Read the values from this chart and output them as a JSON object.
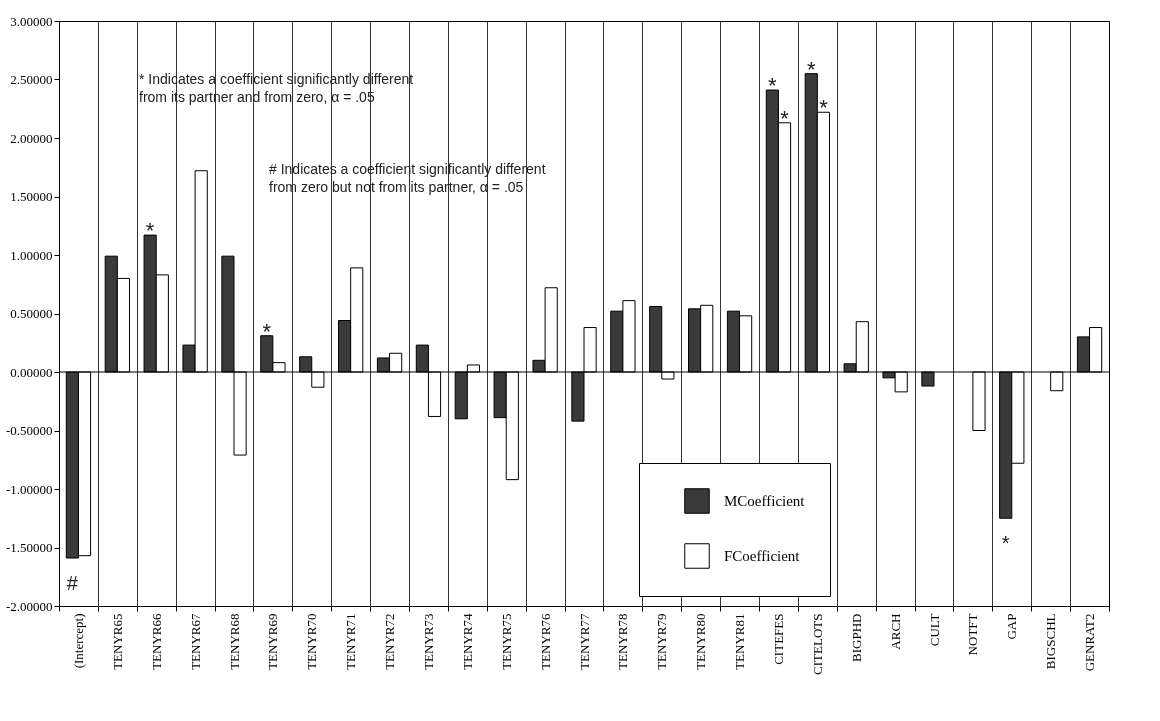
{
  "chart_data": {
    "type": "bar",
    "categories": [
      "(Intercept)",
      "TENYR65",
      "TENYR66",
      "TENYR67",
      "TENYR68",
      "TENYR69",
      "TENYR70",
      "TENYR71",
      "TENYR72",
      "TENYR73",
      "TENYR74",
      "TENYR75",
      "TENYR76",
      "TENYR77",
      "TENYR78",
      "TENYR79",
      "TENYR80",
      "TENYR81",
      "CITEFES",
      "CITELOTS",
      "BIGPHD",
      "ARCH",
      "CULT",
      "NOTFT",
      "GAP",
      "BIGSCHL",
      "GENRAT2"
    ],
    "series": [
      {
        "name": "MCoefficient",
        "color": "#3a3a3a",
        "values": [
          -1.59,
          0.99,
          1.17,
          0.23,
          0.99,
          0.31,
          0.13,
          0.44,
          0.12,
          0.23,
          -0.4,
          -0.39,
          0.1,
          -0.42,
          0.52,
          0.56,
          0.54,
          0.52,
          2.41,
          2.55,
          0.07,
          -0.05,
          -0.12,
          null,
          -1.25,
          null,
          0.3
        ]
      },
      {
        "name": "FCoefficient",
        "color": "#ffffff",
        "values": [
          -1.57,
          0.8,
          0.83,
          1.72,
          -0.71,
          0.08,
          -0.13,
          0.89,
          0.16,
          -0.38,
          0.06,
          -0.92,
          0.72,
          0.38,
          0.61,
          -0.06,
          0.57,
          0.48,
          2.13,
          2.22,
          0.43,
          -0.17,
          null,
          -0.5,
          -0.78,
          -0.16,
          0.38
        ]
      }
    ],
    "ylim": [
      -2,
      3
    ],
    "yticks": [
      {
        "value": -2,
        "label": "-2.00000"
      },
      {
        "value": -1.5,
        "label": "-1.50000"
      },
      {
        "value": -1,
        "label": "-1.00000"
      },
      {
        "value": -0.5,
        "label": "-0.50000"
      },
      {
        "value": 0,
        "label": "0.00000"
      },
      {
        "value": 0.5,
        "label": "0.50000"
      },
      {
        "value": 1,
        "label": "1.00000"
      },
      {
        "value": 1.5,
        "label": "1.50000"
      },
      {
        "value": 2,
        "label": "2.00000"
      },
      {
        "value": 2.5,
        "label": "2.50000"
      },
      {
        "value": 3,
        "label": "3.00000"
      }
    ],
    "ref_lines": [
      {
        "axis": "y",
        "value": 0,
        "color": "#000000"
      }
    ],
    "grid": "x",
    "legend": "bottom right",
    "annotations": [
      "* Indicates a coefficient significantly different\nfrom its partner and from zero, α = .05",
      "# Indicates a coefficient significantly different\nfrom zero but not from its partner, α = .05",
      {
        "text": "#",
        "x": "(Intercept)",
        "y": -1.59
      },
      {
        "text": "*",
        "x": "TENYR66",
        "y": 1.17
      },
      {
        "text": "*",
        "x": "TENYR69",
        "y": 0.31
      },
      {
        "text": "*",
        "x": "CITEFES",
        "y": 2.41
      },
      {
        "text": "*",
        "x": "CITEFES",
        "y": 2.13
      },
      {
        "text": "*",
        "x": "CITELOTS",
        "y": 2.55
      },
      {
        "text": "*",
        "x": "CITELOTS",
        "y": 2.22
      },
      {
        "text": "*",
        "x": "GAP",
        "y": -1.25
      }
    ]
  }
}
